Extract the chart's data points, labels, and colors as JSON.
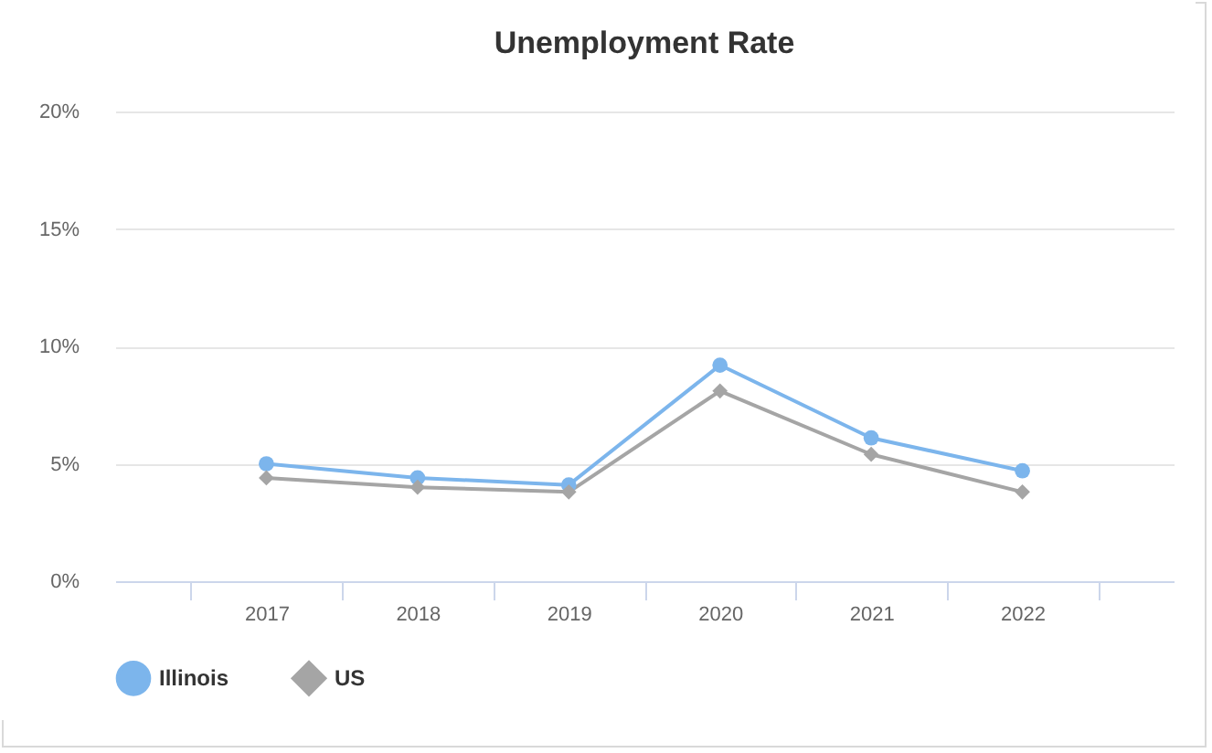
{
  "chart_data": {
    "type": "line",
    "title": "Unemployment Rate",
    "categories": [
      "2017",
      "2018",
      "2019",
      "2020",
      "2021",
      "2022"
    ],
    "series": [
      {
        "name": "Illinois",
        "color": "#7cb5ec",
        "marker": "circle",
        "values": [
          5.0,
          4.4,
          4.1,
          9.2,
          6.1,
          4.7
        ]
      },
      {
        "name": "US",
        "color": "#a5a5a5",
        "marker": "diamond",
        "values": [
          4.4,
          4.0,
          3.8,
          8.1,
          5.4,
          3.8
        ]
      }
    ],
    "ylim": [
      0,
      20
    ],
    "yticks": [
      {
        "value": 0,
        "label": "0%"
      },
      {
        "value": 5,
        "label": "5%"
      },
      {
        "value": 10,
        "label": "10%"
      },
      {
        "value": 15,
        "label": "15%"
      },
      {
        "value": 20,
        "label": "20%"
      }
    ],
    "grid": "y",
    "legend": "bottom"
  }
}
